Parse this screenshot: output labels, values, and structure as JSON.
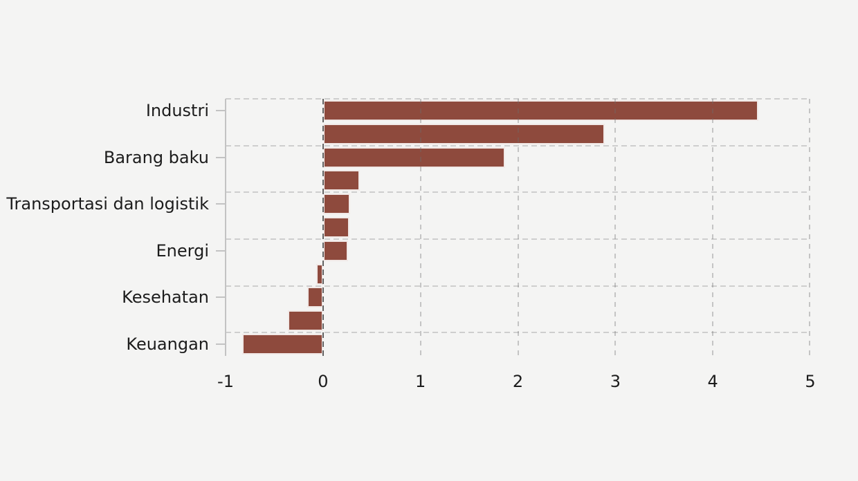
{
  "chart_data": {
    "type": "bar",
    "orientation": "horizontal",
    "title": "",
    "xlabel": "",
    "ylabel": "",
    "xlim": [
      -1,
      5
    ],
    "x_ticks": [
      "-1",
      "0",
      "1",
      "2",
      "3",
      "4",
      "5"
    ],
    "x_tick_values": [
      -1,
      0,
      1,
      2,
      3,
      4,
      5
    ],
    "grid": true,
    "legend_position": "none",
    "bars": [
      {
        "label": "Industri",
        "value": 4.47
      },
      {
        "label": "",
        "value": 2.89
      },
      {
        "label": "Barang baku",
        "value": 1.87
      },
      {
        "label": "",
        "value": 0.38
      },
      {
        "label": "Transportasi dan logistik",
        "value": 0.28
      },
      {
        "label": "",
        "value": 0.27
      },
      {
        "label": "Energi",
        "value": 0.26
      },
      {
        "label": "",
        "value": -0.07
      },
      {
        "label": "Kesehatan",
        "value": -0.16
      },
      {
        "label": "",
        "value": -0.36
      },
      {
        "label": "Keuangan",
        "value": -0.83
      }
    ],
    "colors": {
      "background": "#f4f4f3",
      "bar": "#8E4A3D",
      "bar_edge": "#ffffff",
      "gridline": "#cecece",
      "gridline_over_bar": "rgba(108,108,108,0.35)",
      "zero_line": "rgba(58,58,58,0.78)",
      "axis": "#c3c3c3",
      "text": "#1c1c1c"
    }
  }
}
